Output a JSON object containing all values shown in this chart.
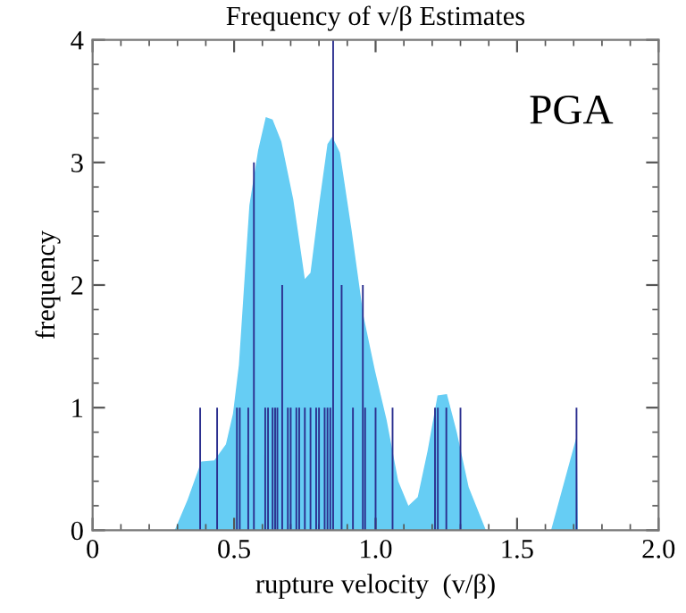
{
  "chart_data": {
    "type": "area",
    "title": "Frequency of v/β Estimates",
    "xlabel": "rupture velocity  (v/β)",
    "ylabel": "frequency",
    "annotations": [
      "PGA"
    ],
    "xlim": [
      0,
      2
    ],
    "ylim": [
      0,
      4
    ],
    "xticks": [
      0,
      {
        "value": 0.5,
        "label": "0.5"
      },
      {
        "value": 1.0,
        "label": "1.0"
      },
      {
        "value": 1.5,
        "label": "1.5"
      },
      {
        "value": 2.0,
        "label": "2.0"
      }
    ],
    "yticks": [
      0,
      1,
      2,
      3,
      4
    ],
    "grid": false,
    "series": [
      {
        "color": "#66cdf4",
        "x": [
          0.29,
          0.336,
          0.384,
          0.43,
          0.471,
          0.496,
          0.517,
          0.554,
          0.585,
          0.612,
          0.636,
          0.667,
          0.709,
          0.75,
          0.77,
          0.8,
          0.83,
          0.847,
          0.874,
          0.915,
          0.957,
          0.998,
          1.039,
          1.08,
          1.116,
          1.149,
          1.184,
          1.219,
          1.252,
          1.287,
          1.329,
          1.39,
          1.62,
          1.711,
          1.715
        ],
        "values": [
          0,
          0.25,
          0.56,
          0.57,
          0.7,
          0.95,
          1.35,
          2.65,
          3.1,
          3.37,
          3.35,
          3.17,
          2.7,
          2.05,
          2.1,
          2.65,
          3.15,
          3.21,
          3.08,
          2.45,
          1.75,
          1.3,
          0.9,
          0.4,
          0.2,
          0.27,
          0.65,
          1.1,
          1.11,
          0.8,
          0.35,
          0,
          0,
          0.77,
          0
        ]
      },
      {
        "type": "bar",
        "color": "#2b2f8f",
        "x": [
          0.38,
          0.44,
          0.51,
          0.52,
          0.55,
          0.57,
          0.61,
          0.62,
          0.636,
          0.645,
          0.653,
          0.67,
          0.69,
          0.7,
          0.72,
          0.73,
          0.75,
          0.77,
          0.79,
          0.8,
          0.82,
          0.83,
          0.84,
          0.85,
          0.88,
          0.92,
          0.955,
          0.963,
          1.0,
          1.06,
          1.21,
          1.22,
          1.25,
          1.3,
          1.71
        ],
        "values": [
          1,
          1,
          1,
          1,
          1,
          3,
          1,
          1,
          1,
          1,
          1,
          2,
          1,
          1,
          1,
          1,
          1,
          1,
          1,
          1,
          1,
          1,
          1,
          4,
          2,
          1,
          2,
          1,
          1,
          1,
          1,
          1,
          1,
          1,
          1
        ]
      }
    ]
  }
}
